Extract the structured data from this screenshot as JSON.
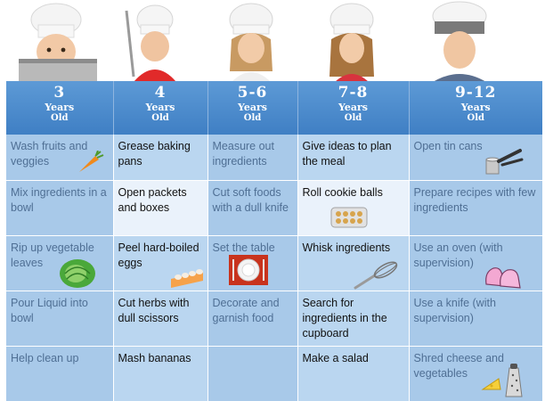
{
  "columns": [
    {
      "age": "3",
      "years": "Years",
      "old": "Old"
    },
    {
      "age": "4",
      "years": "Years",
      "old": "Old"
    },
    {
      "age": "5-6",
      "years": "Years",
      "old": "Old"
    },
    {
      "age": "7-8",
      "years": "Years",
      "old": "Old"
    },
    {
      "age": "9-12",
      "years": "Years",
      "old": "Old"
    }
  ],
  "rows": [
    [
      "Wash fruits and veggies",
      "Grease baking pans",
      "Measure out ingredients",
      "Give ideas to plan the meal",
      "Open tin cans"
    ],
    [
      "Mix ingredients in a bowl",
      "Open packets and boxes",
      "Cut soft foods with a dull knife",
      "Roll cookie balls",
      "Prepare recipes with few ingredients"
    ],
    [
      "Rip up vegetable leaves",
      "Peel hard-boiled eggs",
      "Set the table",
      "Whisk ingredients",
      "Use an oven (with supervision)"
    ],
    [
      "Pour Liquid into bowl",
      "Cut herbs with dull scissors",
      "Decorate and garnish food",
      "Search for ingredients in the cupboard",
      "Use a knife (with supervision)"
    ],
    [
      "Help clean up",
      "Mash bananas",
      "",
      "Make a salad",
      "Shred cheese and vegetables"
    ]
  ],
  "icons": {
    "r1c1": "carrot-icon",
    "r1c5": "can-opener-icon",
    "r2c4": "cookie-tray-icon",
    "r3c1": "lettuce-icon",
    "r3c2": "egg-carton-icon",
    "r3c3": "place-setting-icon",
    "r3c4": "whisk-icon",
    "r3c5": "oven-mitts-icon",
    "r5c5": "cheese-grater-icon"
  },
  "colors": {
    "header_blue": "#4a8ad0",
    "cell_light": "#a8c9e9",
    "cell_dark": "#bad6f0",
    "cell_white": "#eaf2fb"
  }
}
